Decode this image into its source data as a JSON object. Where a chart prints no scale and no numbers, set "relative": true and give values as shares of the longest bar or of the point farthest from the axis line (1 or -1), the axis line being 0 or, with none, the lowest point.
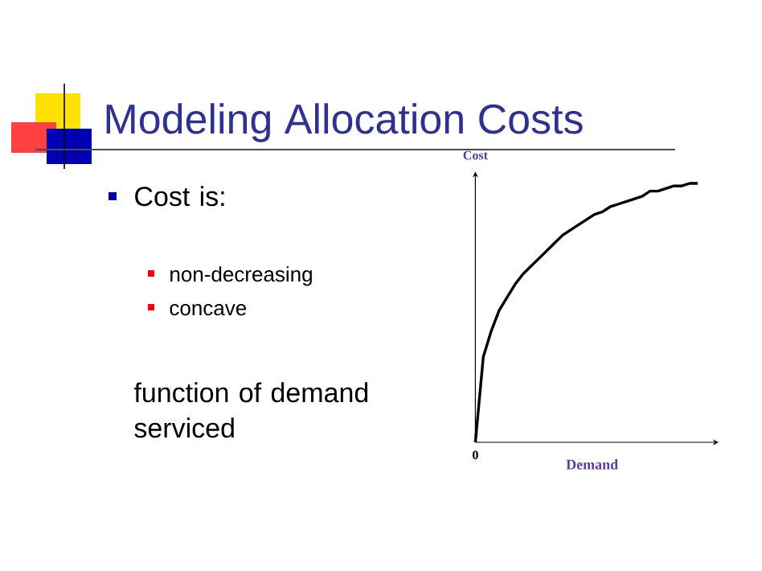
{
  "chart_data": {
    "type": "line",
    "title": "Modeling Allocation Costs",
    "xlabel": "Demand",
    "ylabel": "Cost",
    "categories": [
      null,
      null,
      null,
      null,
      null,
      null,
      null,
      null,
      null,
      null,
      null,
      null,
      null,
      null,
      null,
      null,
      null,
      null,
      null,
      null,
      null,
      null,
      null,
      null,
      null,
      null,
      null,
      null,
      null
    ],
    "values": [
      0,
      0.33,
      0.43,
      0.51,
      0.56,
      0.61,
      0.65,
      0.68,
      0.71,
      0.74,
      0.77,
      0.8,
      0.82,
      0.84,
      0.86,
      0.88,
      0.89,
      0.91,
      0.92,
      0.93,
      0.94,
      0.95,
      0.97,
      0.97,
      0.98,
      0.99,
      0.99,
      1.0,
      1.0
    ],
    "color": "#000000",
    "relative": true,
    "annotations": [
      "Cost is:",
      "non-decreasing",
      "concave",
      "function of demand serviced",
      "0"
    ]
  }
}
